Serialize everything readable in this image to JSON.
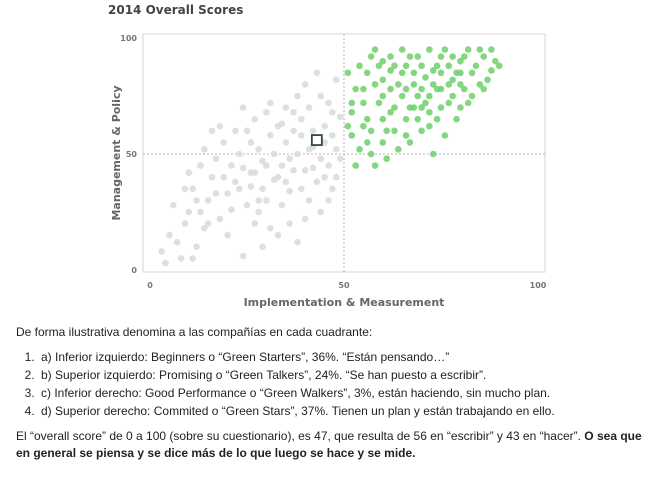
{
  "chart_data": {
    "type": "scatter",
    "title": "2014 Overall Scores",
    "xlabel": "Implementation & Measurement",
    "ylabel": "Management & Policy",
    "xlim": [
      0,
      100
    ],
    "ylim": [
      0,
      100
    ],
    "xticks": [
      "0",
      "50",
      "100"
    ],
    "yticks": [
      "0",
      "50",
      "100"
    ],
    "divider": {
      "x": 50,
      "y": 50
    },
    "overall_marker": {
      "x": 43,
      "y": 56
    },
    "colors": {
      "gray_points": "#d9dbe1",
      "green_points": "#6ecf6b",
      "divider": "#a0a0a0",
      "marker": "#2d4a3e"
    },
    "series": [
      {
        "color": "gray",
        "points": [
          [
            3,
            8
          ],
          [
            5,
            15
          ],
          [
            4,
            3
          ],
          [
            7,
            12
          ],
          [
            9,
            20
          ],
          [
            12,
            10
          ],
          [
            6,
            28
          ],
          [
            10,
            25
          ],
          [
            14,
            18
          ],
          [
            15,
            30
          ],
          [
            11,
            35
          ],
          [
            13,
            45
          ],
          [
            16,
            40
          ],
          [
            17,
            48
          ],
          [
            18,
            22
          ],
          [
            20,
            33
          ],
          [
            22,
            38
          ],
          [
            21,
            26
          ],
          [
            19,
            55
          ],
          [
            23,
            50
          ],
          [
            24,
            44
          ],
          [
            25,
            60
          ],
          [
            26,
            36
          ],
          [
            27,
            42
          ],
          [
            28,
            52
          ],
          [
            29,
            47
          ],
          [
            30,
            30
          ],
          [
            31,
            58
          ],
          [
            32,
            39
          ],
          [
            33,
            62
          ],
          [
            34,
            45
          ],
          [
            35,
            55
          ],
          [
            36,
            34
          ],
          [
            37,
            60
          ],
          [
            38,
            50
          ],
          [
            39,
            65
          ],
          [
            40,
            43
          ],
          [
            41,
            70
          ],
          [
            42,
            53
          ],
          [
            44,
            48
          ],
          [
            45,
            62
          ],
          [
            46,
            72
          ],
          [
            47,
            58
          ],
          [
            48,
            52
          ],
          [
            49,
            66
          ],
          [
            38,
            75
          ],
          [
            35,
            70
          ],
          [
            40,
            80
          ],
          [
            30,
            68
          ],
          [
            33,
            40
          ],
          [
            27,
            20
          ],
          [
            25,
            28
          ],
          [
            22,
            60
          ],
          [
            18,
            62
          ],
          [
            20,
            15
          ],
          [
            24,
            6
          ],
          [
            28,
            25
          ],
          [
            31,
            18
          ],
          [
            34,
            28
          ],
          [
            36,
            20
          ],
          [
            39,
            35
          ],
          [
            41,
            30
          ],
          [
            43,
            38
          ],
          [
            44,
            25
          ],
          [
            46,
            45
          ],
          [
            47,
            35
          ],
          [
            48,
            40
          ],
          [
            26,
            55
          ],
          [
            29,
            35
          ],
          [
            32,
            50
          ],
          [
            42,
            60
          ],
          [
            37,
            43
          ],
          [
            30,
            45
          ],
          [
            45,
            55
          ],
          [
            49,
            48
          ],
          [
            8,
            5
          ],
          [
            12,
            30
          ],
          [
            14,
            52
          ],
          [
            10,
            42
          ],
          [
            16,
            60
          ],
          [
            43,
            85
          ],
          [
            39,
            58
          ],
          [
            36,
            48
          ],
          [
            23,
            35
          ],
          [
            17,
            33
          ],
          [
            15,
            20
          ],
          [
            21,
            45
          ],
          [
            27,
            65
          ],
          [
            34,
            63
          ],
          [
            41,
            52
          ],
          [
            47,
            68
          ],
          [
            44,
            75
          ],
          [
            31,
            72
          ],
          [
            48,
            82
          ],
          [
            46,
            30
          ],
          [
            40,
            22
          ],
          [
            38,
            12
          ],
          [
            33,
            15
          ],
          [
            29,
            10
          ],
          [
            26,
            42
          ],
          [
            42,
            44
          ],
          [
            19,
            40
          ],
          [
            13,
            25
          ],
          [
            9,
            35
          ],
          [
            11,
            5
          ],
          [
            24,
            70
          ],
          [
            37,
            68
          ],
          [
            45,
            40
          ],
          [
            28,
            30
          ],
          [
            35,
            38
          ]
        ]
      },
      {
        "color": "green",
        "points": [
          [
            52,
            68
          ],
          [
            55,
            72
          ],
          [
            58,
            80
          ],
          [
            60,
            65
          ],
          [
            62,
            78
          ],
          [
            65,
            85
          ],
          [
            67,
            70
          ],
          [
            70,
            88
          ],
          [
            72,
            75
          ],
          [
            75,
            92
          ],
          [
            78,
            82
          ],
          [
            80,
            90
          ],
          [
            82,
            72
          ],
          [
            85,
            95
          ],
          [
            88,
            86
          ],
          [
            52,
            58
          ],
          [
            55,
            62
          ],
          [
            57,
            50
          ],
          [
            60,
            55
          ],
          [
            63,
            60
          ],
          [
            66,
            58
          ],
          [
            69,
            65
          ],
          [
            72,
            62
          ],
          [
            75,
            70
          ],
          [
            53,
            78
          ],
          [
            56,
            85
          ],
          [
            59,
            88
          ],
          [
            62,
            92
          ],
          [
            65,
            95
          ],
          [
            68,
            80
          ],
          [
            71,
            83
          ],
          [
            74,
            78
          ],
          [
            77,
            88
          ],
          [
            80,
            80
          ],
          [
            83,
            85
          ],
          [
            86,
            78
          ],
          [
            89,
            90
          ],
          [
            54,
            52
          ],
          [
            58,
            45
          ],
          [
            61,
            48
          ],
          [
            64,
            52
          ],
          [
            67,
            55
          ],
          [
            70,
            60
          ],
          [
            73,
            50
          ],
          [
            76,
            58
          ],
          [
            79,
            65
          ],
          [
            51,
            85
          ],
          [
            54,
            88
          ],
          [
            57,
            92
          ],
          [
            60,
            75
          ],
          [
            63,
            70
          ],
          [
            66,
            88
          ],
          [
            69,
            75
          ],
          [
            72,
            95
          ],
          [
            75,
            85
          ],
          [
            78,
            75
          ],
          [
            81,
            92
          ],
          [
            84,
            88
          ],
          [
            87,
            82
          ],
          [
            56,
            65
          ],
          [
            59,
            72
          ],
          [
            62,
            68
          ],
          [
            65,
            75
          ],
          [
            68,
            70
          ],
          [
            71,
            72
          ],
          [
            74,
            65
          ],
          [
            77,
            80
          ],
          [
            80,
            70
          ],
          [
            83,
            75
          ],
          [
            51,
            62
          ],
          [
            53,
            45
          ],
          [
            56,
            55
          ],
          [
            61,
            60
          ],
          [
            64,
            80
          ],
          [
            67,
            92
          ],
          [
            70,
            78
          ],
          [
            73,
            86
          ],
          [
            76,
            95
          ],
          [
            79,
            85
          ],
          [
            82,
            95
          ],
          [
            85,
            80
          ],
          [
            88,
            95
          ],
          [
            90,
            88
          ],
          [
            55,
            78
          ],
          [
            58,
            95
          ],
          [
            62,
            86
          ],
          [
            66,
            65
          ],
          [
            69,
            92
          ],
          [
            72,
            68
          ],
          [
            75,
            78
          ],
          [
            78,
            92
          ],
          [
            81,
            78
          ],
          [
            86,
            92
          ],
          [
            57,
            60
          ],
          [
            60,
            82
          ],
          [
            63,
            88
          ],
          [
            66,
            78
          ],
          [
            70,
            70
          ],
          [
            74,
            88
          ],
          [
            77,
            72
          ],
          [
            80,
            85
          ],
          [
            52,
            72
          ],
          [
            60,
            90
          ],
          [
            68,
            85
          ],
          [
            73,
            80
          ]
        ]
      }
    ]
  },
  "text": {
    "intro": "De forma ilustrativa denomina a las compañías en cada cuadrante:",
    "items": [
      "a) Inferior izquierdo: Beginners o “Green Starters”, 36%. “Están pensando…”",
      "b) Superior izquierdo: Promising o “Green Talkers”, 24%. “Se han puesto a escribir”.",
      "c) Inferior derecho: Good Performance o “Green Walkers”, 3%, están haciendo, sin mucho plan.",
      "d) Superior derecho: Commited o “Green Stars”, 37%. Tienen un plan y están trabajando en ello."
    ],
    "conclusion_plain": "El “overall score” de 0 a 100 (sobre su cuestionario), es 47, que resulta de 56 en “escribir” y 43 en “hacer”. ",
    "conclusion_bold": "O sea que en general se piensa y se dice más de lo que luego se hace y se mide."
  }
}
